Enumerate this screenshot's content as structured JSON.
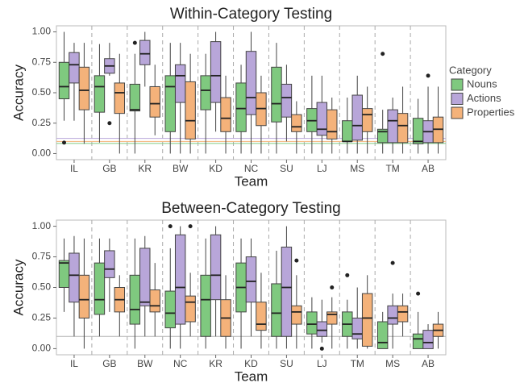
{
  "chart_data": [
    {
      "type": "boxplot",
      "title": "Within-Category Testing",
      "x_label": "Team",
      "y_label": "Accuracy",
      "legend_title": "Category",
      "categories": [
        "IL",
        "GB",
        "KR",
        "BW",
        "KD",
        "NC",
        "SU",
        "LJ",
        "MS",
        "TM",
        "AB"
      ],
      "ylim": [
        -0.05,
        1.05
      ],
      "yticks": [
        {
          "value": 0,
          "label": "0.00"
        },
        {
          "value": 0.25,
          "label": "0.25"
        },
        {
          "value": 0.5,
          "label": "0.50"
        },
        {
          "value": 0.75,
          "label": "0.75"
        },
        {
          "value": 1,
          "label": "1.00"
        }
      ],
      "reference_lines": [
        {
          "value": 0.083,
          "color": "#7fc97f"
        },
        {
          "value": 0.1,
          "color": "#f4b27a"
        },
        {
          "value": 0.125,
          "color": "#b8a6d9"
        }
      ],
      "series": [
        {
          "name": "Nouns",
          "color": "#7fc97f",
          "values": [
            {
              "min": 0.27,
              "q1": 0.45,
              "median": 0.55,
              "q3": 0.75,
              "max": 1.0,
              "outliers": [
                0.09
              ]
            },
            {
              "min": 0.09,
              "q1": 0.34,
              "median": 0.55,
              "q3": 0.64,
              "max": 0.9,
              "outliers": []
            },
            {
              "min": 0.0,
              "q1": 0.35,
              "median": 0.36,
              "q3": 0.57,
              "max": 0.82,
              "outliers": [
                0.91
              ]
            },
            {
              "min": 0.0,
              "q1": 0.18,
              "median": 0.55,
              "q3": 0.64,
              "max": 0.91,
              "outliers": []
            },
            {
              "min": 0.0,
              "q1": 0.36,
              "median": 0.52,
              "q3": 0.64,
              "max": 0.82,
              "outliers": []
            },
            {
              "min": 0.0,
              "q1": 0.18,
              "median": 0.37,
              "q3": 0.58,
              "max": 0.73,
              "outliers": []
            },
            {
              "min": 0.0,
              "q1": 0.26,
              "median": 0.41,
              "q3": 0.71,
              "max": 0.91,
              "outliers": []
            },
            {
              "min": 0.0,
              "q1": 0.18,
              "median": 0.27,
              "q3": 0.37,
              "max": 0.64,
              "outliers": []
            },
            {
              "min": 0.0,
              "q1": 0.1,
              "median": 0.1,
              "q3": 0.27,
              "max": 0.46,
              "outliers": []
            },
            {
              "min": 0.0,
              "q1": 0.09,
              "median": 0.18,
              "q3": 0.2,
              "max": 0.36,
              "outliers": [
                0.82
              ]
            },
            {
              "min": 0.0,
              "q1": 0.08,
              "median": 0.1,
              "q3": 0.29,
              "max": 0.45,
              "outliers": []
            }
          ]
        },
        {
          "name": "Actions",
          "color": "#b8a6d9",
          "values": [
            {
              "min": 0.27,
              "q1": 0.58,
              "median": 0.73,
              "q3": 0.83,
              "max": 0.91,
              "outliers": []
            },
            {
              "min": 0.64,
              "q1": 0.66,
              "median": 0.72,
              "q3": 0.78,
              "max": 0.91,
              "outliers": [
                0.25
              ]
            },
            {
              "min": 0.55,
              "q1": 0.73,
              "median": 0.82,
              "q3": 0.93,
              "max": 1.0,
              "outliers": []
            },
            {
              "min": 0.0,
              "q1": 0.42,
              "median": 0.64,
              "q3": 0.73,
              "max": 0.91,
              "outliers": []
            },
            {
              "min": 0.18,
              "q1": 0.42,
              "median": 0.64,
              "q3": 0.92,
              "max": 1.0,
              "outliers": []
            },
            {
              "min": 0.0,
              "q1": 0.32,
              "median": 0.46,
              "q3": 0.84,
              "max": 1.0,
              "outliers": []
            },
            {
              "min": 0.1,
              "q1": 0.3,
              "median": 0.46,
              "q3": 0.57,
              "max": 0.73,
              "outliers": []
            },
            {
              "min": 0.0,
              "q1": 0.15,
              "median": 0.2,
              "q3": 0.42,
              "max": 0.64,
              "outliers": []
            },
            {
              "min": 0.0,
              "q1": 0.11,
              "median": 0.23,
              "q3": 0.48,
              "max": 0.64,
              "outliers": []
            },
            {
              "min": 0.0,
              "q1": 0.09,
              "median": 0.27,
              "q3": 0.36,
              "max": 0.46,
              "outliers": []
            },
            {
              "min": 0.0,
              "q1": 0.09,
              "median": 0.18,
              "q3": 0.27,
              "max": 0.55,
              "outliers": [
                0.64
              ]
            }
          ]
        },
        {
          "name": "Properties",
          "color": "#f4b27a",
          "values": [
            {
              "min": 0.08,
              "q1": 0.36,
              "median": 0.52,
              "q3": 0.71,
              "max": 0.91,
              "outliers": []
            },
            {
              "min": 0.0,
              "q1": 0.33,
              "median": 0.5,
              "q3": 0.58,
              "max": 0.82,
              "outliers": []
            },
            {
              "min": 0.15,
              "q1": 0.3,
              "median": 0.41,
              "q3": 0.55,
              "max": 0.73,
              "outliers": []
            },
            {
              "min": 0.0,
              "q1": 0.12,
              "median": 0.27,
              "q3": 0.59,
              "max": 0.82,
              "outliers": []
            },
            {
              "min": 0.0,
              "q1": 0.18,
              "median": 0.29,
              "q3": 0.46,
              "max": 0.64,
              "outliers": []
            },
            {
              "min": 0.0,
              "q1": 0.23,
              "median": 0.37,
              "q3": 0.5,
              "max": 0.64,
              "outliers": []
            },
            {
              "min": 0.0,
              "q1": 0.18,
              "median": 0.22,
              "q3": 0.32,
              "max": 0.43,
              "outliers": []
            },
            {
              "min": 0.0,
              "q1": 0.12,
              "median": 0.18,
              "q3": 0.36,
              "max": 0.46,
              "outliers": []
            },
            {
              "min": 0.0,
              "q1": 0.18,
              "median": 0.32,
              "q3": 0.37,
              "max": 0.55,
              "outliers": []
            },
            {
              "min": 0.0,
              "q1": 0.09,
              "median": 0.23,
              "q3": 0.33,
              "max": 0.55,
              "outliers": []
            },
            {
              "min": 0.0,
              "q1": 0.09,
              "median": 0.2,
              "q3": 0.3,
              "max": 0.55,
              "outliers": []
            }
          ]
        }
      ]
    },
    {
      "type": "boxplot",
      "title": "Between-Category Testing",
      "x_label": "Team",
      "y_label": "Accuracy",
      "categories": [
        "IL",
        "GB",
        "BW",
        "NC",
        "KR",
        "KD",
        "SU",
        "LJ",
        "TM",
        "MS",
        "AB"
      ],
      "ylim": [
        -0.05,
        1.05
      ],
      "yticks": [
        {
          "value": 0,
          "label": "0.00"
        },
        {
          "value": 0.25,
          "label": "0.25"
        },
        {
          "value": 0.5,
          "label": "0.50"
        },
        {
          "value": 0.75,
          "label": "0.75"
        },
        {
          "value": 1,
          "label": "1.00"
        }
      ],
      "reference_lines": [
        {
          "value": 0.1,
          "color": "#b0b0b0"
        }
      ],
      "series": [
        {
          "color": "#7fc97f",
          "values": [
            {
              "min": 0.3,
              "q1": 0.5,
              "median": 0.7,
              "q3": 0.72,
              "max": 0.9,
              "outliers": []
            },
            {
              "min": 0.1,
              "q1": 0.28,
              "median": 0.4,
              "q3": 0.7,
              "max": 0.9,
              "outliers": []
            },
            {
              "min": 0.0,
              "q1": 0.2,
              "median": 0.32,
              "q3": 0.6,
              "max": 0.9,
              "outliers": []
            },
            {
              "min": 0.0,
              "q1": 0.17,
              "median": 0.29,
              "q3": 0.47,
              "max": 0.82,
              "outliers": [
                1.0
              ]
            },
            {
              "min": 0.0,
              "q1": 0.1,
              "median": 0.4,
              "q3": 0.6,
              "max": 0.9,
              "outliers": []
            },
            {
              "min": 0.0,
              "q1": 0.3,
              "median": 0.5,
              "q3": 0.7,
              "max": 0.9,
              "outliers": []
            },
            {
              "min": 0.0,
              "q1": 0.1,
              "median": 0.29,
              "q3": 0.53,
              "max": 0.8,
              "outliers": []
            },
            {
              "min": 0.0,
              "q1": 0.12,
              "median": 0.2,
              "q3": 0.3,
              "max": 0.42,
              "outliers": []
            },
            {
              "min": 0.0,
              "q1": 0.1,
              "median": 0.2,
              "q3": 0.3,
              "max": 0.4,
              "outliers": [
                0.6
              ]
            },
            {
              "min": 0.0,
              "q1": 0.0,
              "median": 0.05,
              "q3": 0.22,
              "max": 0.3,
              "outliers": []
            },
            {
              "min": 0.0,
              "q1": 0.0,
              "median": 0.08,
              "q3": 0.12,
              "max": 0.3,
              "outliers": [
                0.45
              ]
            }
          ]
        },
        {
          "color": "#b8a6d9",
          "values": [
            {
              "min": 0.1,
              "q1": 0.38,
              "median": 0.6,
              "q3": 0.78,
              "max": 0.92,
              "outliers": []
            },
            {
              "min": 0.3,
              "q1": 0.58,
              "median": 0.65,
              "q3": 0.8,
              "max": 0.9,
              "outliers": []
            },
            {
              "min": 0.1,
              "q1": 0.35,
              "median": 0.38,
              "q3": 0.82,
              "max": 0.92,
              "outliers": []
            },
            {
              "min": 0.0,
              "q1": 0.2,
              "median": 0.5,
              "q3": 0.93,
              "max": 1.0,
              "outliers": []
            },
            {
              "min": 0.1,
              "q1": 0.4,
              "median": 0.6,
              "q3": 0.93,
              "max": 1.0,
              "outliers": []
            },
            {
              "min": 0.1,
              "q1": 0.38,
              "median": 0.55,
              "q3": 0.75,
              "max": 0.9,
              "outliers": []
            },
            {
              "min": 0.0,
              "q1": 0.1,
              "median": 0.5,
              "q3": 0.83,
              "max": 1.0,
              "outliers": []
            },
            {
              "min": 0.05,
              "q1": 0.1,
              "median": 0.15,
              "q3": 0.22,
              "max": 0.4,
              "outliers": [
                0.0
              ]
            },
            {
              "min": 0.0,
              "q1": 0.08,
              "median": 0.12,
              "q3": 0.25,
              "max": 0.5,
              "outliers": []
            },
            {
              "min": 0.0,
              "q1": 0.2,
              "median": 0.25,
              "q3": 0.35,
              "max": 0.45,
              "outliers": [
                0.7
              ]
            },
            {
              "min": 0.0,
              "q1": 0.0,
              "median": 0.05,
              "q3": 0.15,
              "max": 0.2,
              "outliers": []
            }
          ]
        },
        {
          "color": "#f4b27a",
          "values": [
            {
              "min": 0.0,
              "q1": 0.25,
              "median": 0.4,
              "q3": 0.6,
              "max": 0.9,
              "outliers": []
            },
            {
              "min": 0.1,
              "q1": 0.3,
              "median": 0.4,
              "q3": 0.5,
              "max": 0.6,
              "outliers": []
            },
            {
              "min": 0.1,
              "q1": 0.3,
              "median": 0.35,
              "q3": 0.48,
              "max": 0.7,
              "outliers": []
            },
            {
              "min": 0.1,
              "q1": 0.22,
              "median": 0.38,
              "q3": 0.43,
              "max": 0.62,
              "outliers": [
                1.0
              ]
            },
            {
              "min": 0.0,
              "q1": 0.1,
              "median": 0.25,
              "q3": 0.4,
              "max": 0.6,
              "outliers": []
            },
            {
              "min": 0.0,
              "q1": 0.15,
              "median": 0.2,
              "q3": 0.38,
              "max": 0.62,
              "outliers": []
            },
            {
              "min": 0.0,
              "q1": 0.2,
              "median": 0.3,
              "q3": 0.35,
              "max": 0.6,
              "outliers": [
                0.72
              ]
            },
            {
              "min": 0.0,
              "q1": 0.2,
              "median": 0.28,
              "q3": 0.3,
              "max": 0.42,
              "outliers": [
                0.5
              ]
            },
            {
              "min": 0.0,
              "q1": 0.02,
              "median": 0.25,
              "q3": 0.45,
              "max": 0.6,
              "outliers": []
            },
            {
              "min": 0.1,
              "q1": 0.22,
              "median": 0.3,
              "q3": 0.35,
              "max": 0.45,
              "outliers": []
            },
            {
              "min": 0.0,
              "q1": 0.1,
              "median": 0.15,
              "q3": 0.2,
              "max": 0.3,
              "outliers": []
            }
          ]
        }
      ]
    }
  ]
}
